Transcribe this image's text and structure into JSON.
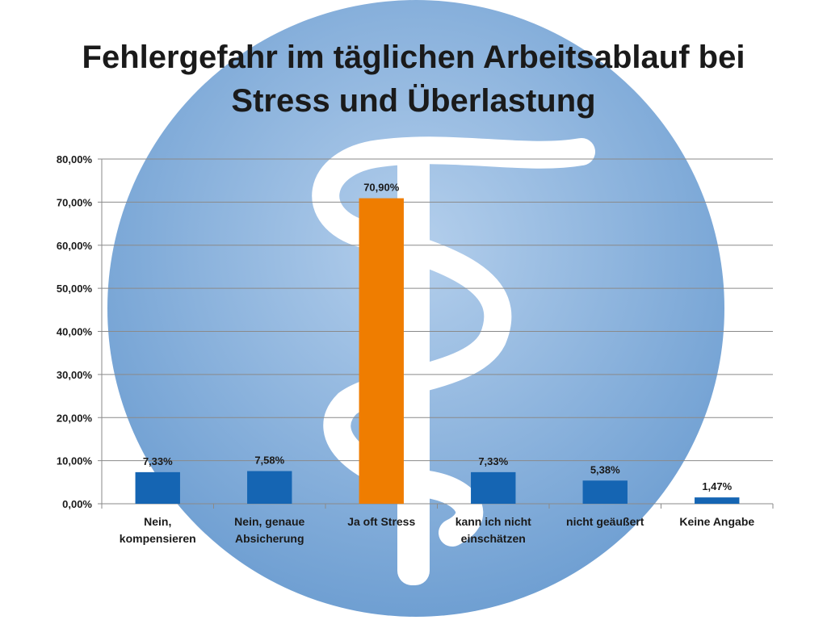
{
  "title_line1": "Fehlergefahr im täglichen Arbeitsablauf bei",
  "title_line2": "Stress und Überlastung",
  "colors": {
    "bar_default": "#1565b3",
    "bar_highlight": "#ef7d00",
    "circle": "#7fa9d8",
    "grid": "#8a8a8a"
  },
  "chart_data": {
    "type": "bar",
    "categories": [
      [
        "Nein,",
        "kompensieren"
      ],
      [
        "Nein, genaue",
        "Absicherung"
      ],
      [
        "Ja oft Stress"
      ],
      [
        "kann ich nicht",
        "einschätzen"
      ],
      [
        "nicht geäußert"
      ],
      [
        "Keine Angabe"
      ]
    ],
    "values": [
      7.33,
      7.58,
      70.9,
      7.33,
      5.38,
      1.47
    ],
    "data_labels": [
      "7,33%",
      "7,58%",
      "70,90%",
      "7,33%",
      "5,38%",
      "1,47%"
    ],
    "highlight_index": 2,
    "ylim": [
      0,
      80
    ],
    "yticks": [
      0,
      10,
      20,
      30,
      40,
      50,
      60,
      70,
      80
    ],
    "ytick_labels": [
      "0,00%",
      "10,00%",
      "20,00%",
      "30,00%",
      "40,00%",
      "50,00%",
      "60,00%",
      "70,00%",
      "80,00%"
    ],
    "grid": true,
    "legend": "none"
  }
}
